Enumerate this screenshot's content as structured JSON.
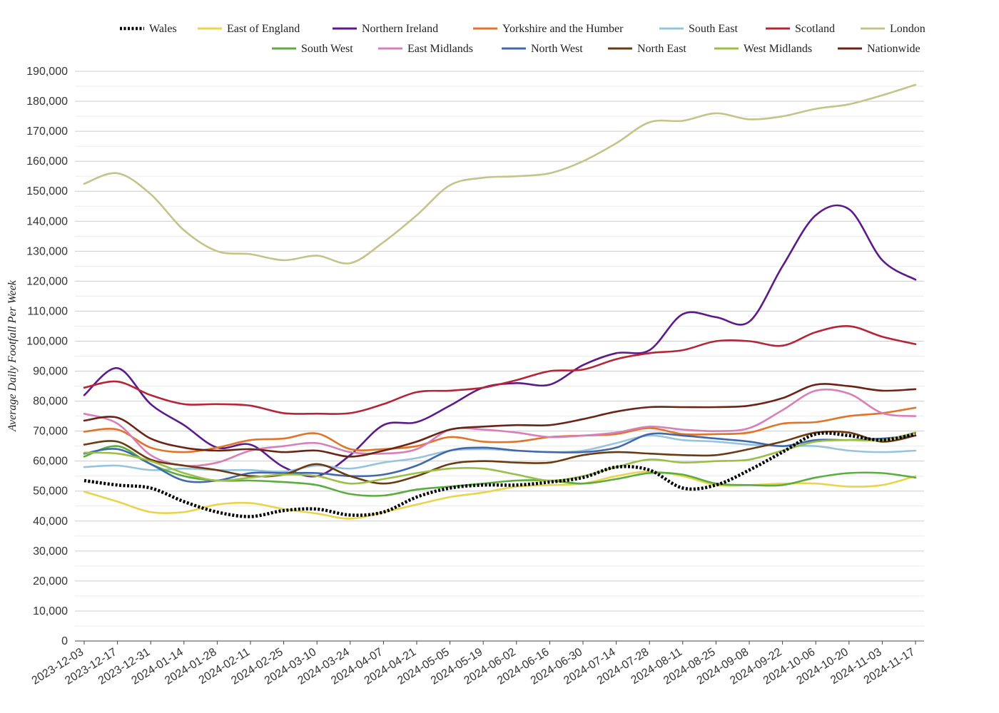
{
  "chart_data": {
    "type": "line",
    "title": "",
    "xlabel": "",
    "ylabel": "Average Daily Footfall Per Week",
    "ylim": [
      0,
      190000
    ],
    "grid": true,
    "legend_position": "top-right",
    "x": [
      "2023-12-03",
      "2023-12-17",
      "2023-12-31",
      "2024-01-14",
      "2024-01-28",
      "2024-02-11",
      "2024-02-25",
      "2024-03-10",
      "2024-03-24",
      "2024-04-07",
      "2024-04-21",
      "2024-05-05",
      "2024-05-19",
      "2024-06-02",
      "2024-06-16",
      "2024-06-30",
      "2024-07-14",
      "2024-07-28",
      "2024-08-11",
      "2024-08-25",
      "2024-09-08",
      "2024-09-22",
      "2024-10-06",
      "2024-10-20",
      "2024-11-03",
      "2024-11-17"
    ],
    "x_tick_labels": [
      "2023-12-03",
      "2023-12-17",
      "2023-12-31",
      "2024-01-14",
      "2024-01-28",
      "2024-02-11",
      "2024-02-25",
      "2024-03-10",
      "2024-03-24",
      "2024-04-07",
      "2024-04-21",
      "2024-05-05",
      "2024-05-19",
      "2024-06-02",
      "2024-06-16",
      "2024-06-30",
      "2024-07-14",
      "2024-07-28",
      "2024-08-11",
      "2024-08-25",
      "2024-09-08",
      "2024-09-22",
      "2024-10-06",
      "2024-10-20",
      "2024-11-03",
      "2024-11-17"
    ],
    "y_tick_labels": [
      "0",
      "10,000",
      "20,000",
      "30,000",
      "40,000",
      "50,000",
      "60,000",
      "70,000",
      "80,000",
      "90,000",
      "100,000",
      "110,000",
      "120,000",
      "130,000",
      "140,000",
      "150,000",
      "160,000",
      "170,000",
      "180,000",
      "190,000"
    ],
    "series": [
      {
        "name": "Wales",
        "color": "#000000",
        "dashed": true,
        "values": [
          53500,
          52000,
          51000,
          46500,
          43000,
          41500,
          43500,
          44000,
          42000,
          43000,
          48000,
          51000,
          52000,
          52000,
          53000,
          54500,
          58000,
          57000,
          51000,
          52000,
          57000,
          63000,
          69000,
          68500,
          67000,
          69000
        ]
      },
      {
        "name": "East of England",
        "color": "#e8d44d",
        "values": [
          49800,
          46500,
          43000,
          43000,
          45500,
          46000,
          44000,
          42500,
          40800,
          43000,
          45500,
          48000,
          49500,
          51500,
          52000,
          52500,
          55000,
          56500,
          55000,
          52000,
          52000,
          52500,
          52500,
          51500,
          52000,
          55000
        ]
      },
      {
        "name": "Northern Ireland",
        "color": "#5c1a8a",
        "values": [
          82000,
          91000,
          79000,
          72000,
          64500,
          65500,
          58000,
          55000,
          62000,
          72000,
          73000,
          78500,
          84500,
          86000,
          85500,
          92000,
          96000,
          97000,
          109000,
          108000,
          106500,
          125000,
          142000,
          144000,
          127000,
          120500
        ]
      },
      {
        "name": "Yorkshire and the Humber",
        "color": "#e07428",
        "values": [
          69800,
          70500,
          64500,
          63000,
          64500,
          67000,
          67500,
          69200,
          64000,
          64000,
          65000,
          68000,
          66500,
          66500,
          68000,
          68500,
          69000,
          71000,
          69000,
          69000,
          69500,
          72500,
          73000,
          75000,
          76000,
          77800
        ]
      },
      {
        "name": "South East",
        "color": "#96c4de",
        "values": [
          58000,
          58500,
          57000,
          57500,
          57000,
          57000,
          56500,
          58500,
          57500,
          59500,
          61000,
          63500,
          64000,
          63500,
          63000,
          63500,
          66000,
          68500,
          67000,
          66500,
          65500,
          65000,
          65000,
          63500,
          63000,
          63500
        ]
      },
      {
        "name": "Scotland",
        "color": "#b52538",
        "values": [
          84500,
          86500,
          82000,
          79000,
          79000,
          78500,
          76000,
          75800,
          76000,
          79000,
          83000,
          83500,
          84500,
          87000,
          90000,
          90500,
          94000,
          96000,
          97000,
          100000,
          100000,
          98500,
          103000,
          105000,
          101500,
          99000
        ]
      },
      {
        "name": "London",
        "color": "#c4c48a",
        "values": [
          152500,
          156000,
          149000,
          137000,
          130000,
          129000,
          127000,
          128500,
          126000,
          133000,
          142000,
          152000,
          154500,
          155000,
          156000,
          160000,
          166000,
          173000,
          173500,
          176000,
          174000,
          175000,
          177500,
          179000,
          182000,
          185500
        ]
      },
      {
        "name": "South West",
        "color": "#5aad3e",
        "values": [
          61500,
          65000,
          59000,
          55000,
          53500,
          53500,
          53000,
          52000,
          49000,
          48500,
          50500,
          51500,
          52500,
          53500,
          53500,
          52500,
          54000,
          56000,
          55500,
          52500,
          52000,
          52000,
          54500,
          56000,
          56000,
          54500
        ]
      },
      {
        "name": "East Midlands",
        "color": "#d67fb8",
        "values": [
          75800,
          72500,
          62000,
          58500,
          59500,
          63500,
          65000,
          66000,
          63000,
          62500,
          64000,
          70500,
          70500,
          69500,
          68000,
          68500,
          69500,
          71500,
          70500,
          70000,
          71000,
          77000,
          83500,
          82500,
          76000,
          75000
        ]
      },
      {
        "name": "North West",
        "color": "#4268ac",
        "values": [
          62500,
          64000,
          59000,
          53500,
          53500,
          56000,
          56000,
          56000,
          55000,
          55500,
          58500,
          63500,
          64500,
          63500,
          63000,
          63000,
          64500,
          69000,
          68500,
          67500,
          66500,
          65000,
          67000,
          67000,
          67500,
          68500
        ]
      },
      {
        "name": "North East",
        "color": "#6b3a10",
        "values": [
          65500,
          66500,
          60500,
          58500,
          57000,
          55000,
          55500,
          59000,
          55000,
          52500,
          55000,
          59000,
          60000,
          59500,
          59500,
          62000,
          63000,
          62500,
          62000,
          62000,
          64000,
          66500,
          69500,
          69500,
          66500,
          68500
        ]
      },
      {
        "name": "West Midlands",
        "color": "#9bbe45",
        "values": [
          62800,
          62500,
          60000,
          56000,
          53500,
          54500,
          55500,
          55000,
          52500,
          54000,
          56000,
          57500,
          57500,
          55500,
          53500,
          55000,
          58000,
          60500,
          59500,
          60000,
          60500,
          63500,
          66500,
          67000,
          67000,
          69500
        ]
      },
      {
        "name": "Nationwide",
        "color": "#6b2315",
        "values": [
          73500,
          74500,
          67500,
          64500,
          63500,
          64000,
          63000,
          63500,
          61500,
          63500,
          66500,
          70500,
          71500,
          72000,
          72000,
          74000,
          76500,
          78000,
          78000,
          78000,
          78500,
          81000,
          85500,
          85000,
          83500,
          84000
        ]
      }
    ]
  }
}
